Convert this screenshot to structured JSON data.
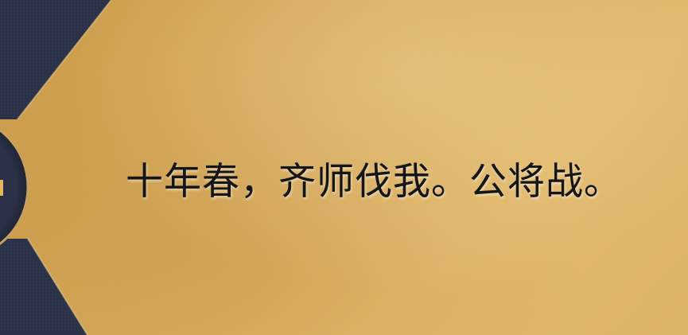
{
  "slide": {
    "text": "十年春，齐师伐我。公将战。"
  },
  "colors": {
    "background": "#d7aa5a",
    "panel": "#2b3146",
    "text": "#151515"
  }
}
